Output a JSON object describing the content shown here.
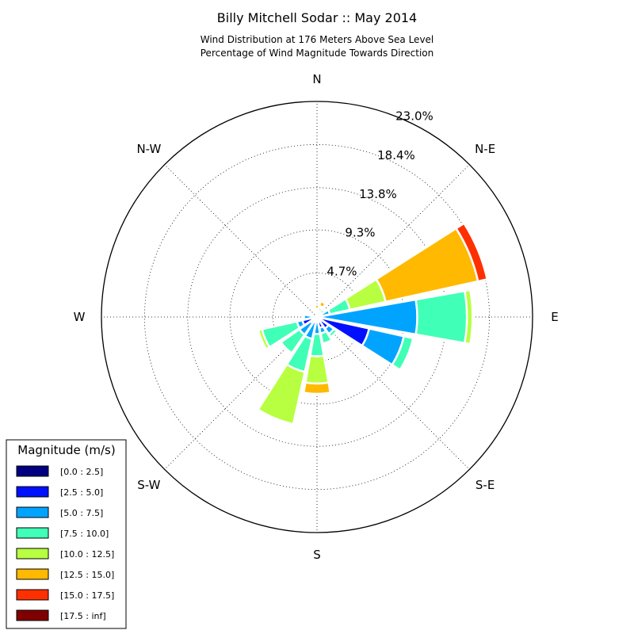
{
  "chart_data": {
    "type": "windrose",
    "title": "Billy Mitchell Sodar :: May 2014",
    "subtitle_lines": [
      "Wind Distribution at 176 Meters Above Sea Level",
      "Percentage of Wind Magnitude Towards Direction"
    ],
    "direction_labels": [
      "N",
      "N-E",
      "E",
      "S-E",
      "S",
      "S-W",
      "W",
      "N-W"
    ],
    "radial_tick_labels": [
      "4.7%",
      "9.3%",
      "13.8%",
      "18.4%",
      "23.0%"
    ],
    "radial_ticks": [
      4.7,
      9.3,
      13.8,
      18.4,
      23.0
    ],
    "rmax": 23.0,
    "grid": true,
    "legend": {
      "title": "Magnitude (m/s)",
      "placement": "lower-left",
      "bins": [
        {
          "label": "[0.0 : 2.5]",
          "color": "#000080"
        },
        {
          "label": "[2.5 : 5.0]",
          "color": "#0010ff"
        },
        {
          "label": "[5.0 : 7.5]",
          "color": "#00a4ff"
        },
        {
          "label": "[7.5 : 10.0]",
          "color": "#40ffb7"
        },
        {
          "label": "[10.0 : 12.5]",
          "color": "#b7ff40"
        },
        {
          "label": "[12.5 : 15.0]",
          "color": "#ffb900"
        },
        {
          "label": "[15.0 : 17.5]",
          "color": "#ff3000"
        },
        {
          "label": "[17.5 : inf]",
          "color": "#800000"
        }
      ]
    },
    "sectors": [
      {
        "direction_deg": 0,
        "cumulative_pct": [
          0.1,
          0.3,
          0.7,
          0.8,
          0.9,
          1.3,
          1.3,
          1.3
        ]
      },
      {
        "direction_deg": 22.5,
        "cumulative_pct": [
          0.1,
          0.3,
          0.7,
          1.0,
          1.2,
          1.7,
          1.7,
          1.7
        ]
      },
      {
        "direction_deg": 45,
        "cumulative_pct": [
          0.1,
          0.3,
          0.6,
          1.0,
          1.1,
          1.2,
          1.2,
          1.2
        ]
      },
      {
        "direction_deg": 67.5,
        "cumulative_pct": [
          0.1,
          0.3,
          1.4,
          3.6,
          7.5,
          17.6,
          18.6,
          18.6
        ]
      },
      {
        "direction_deg": 90,
        "cumulative_pct": [
          0.1,
          0.5,
          10.7,
          16.0,
          16.6,
          16.6,
          16.6,
          16.6
        ]
      },
      {
        "direction_deg": 112.5,
        "cumulative_pct": [
          0.1,
          5.7,
          9.5,
          10.5,
          10.5,
          10.5,
          10.5,
          10.5
        ]
      },
      {
        "direction_deg": 135,
        "cumulative_pct": [
          0.1,
          1.5,
          2.2,
          2.6,
          2.6,
          2.6,
          2.6,
          2.6
        ]
      },
      {
        "direction_deg": 157.5,
        "cumulative_pct": [
          0.1,
          1.2,
          1.8,
          2.9,
          2.9,
          2.9,
          2.9,
          2.9
        ]
      },
      {
        "direction_deg": 180,
        "cumulative_pct": [
          0.1,
          0.5,
          1.8,
          4.2,
          7.1,
          8.2,
          8.2,
          8.2
        ]
      },
      {
        "direction_deg": 202.5,
        "cumulative_pct": [
          0.1,
          0.6,
          2.4,
          6.0,
          11.7,
          11.7,
          11.7,
          11.7
        ]
      },
      {
        "direction_deg": 225,
        "cumulative_pct": [
          0.1,
          0.8,
          2.3,
          4.7,
          4.7,
          4.7,
          4.7,
          4.7
        ]
      },
      {
        "direction_deg": 247.5,
        "cumulative_pct": [
          0.1,
          1.6,
          2.2,
          6.0,
          6.4,
          6.4,
          6.4,
          6.4
        ]
      },
      {
        "direction_deg": 270,
        "cumulative_pct": [
          0.1,
          0.6,
          1.4,
          1.5,
          1.5,
          1.5,
          1.5,
          1.5
        ]
      },
      {
        "direction_deg": 292.5,
        "cumulative_pct": [
          0.1,
          0.1,
          0.1,
          0.1,
          0.1,
          0.1,
          0.1,
          0.1
        ]
      },
      {
        "direction_deg": 315,
        "cumulative_pct": [
          0.1,
          0.1,
          0.1,
          0.1,
          0.1,
          0.1,
          0.1,
          0.1
        ]
      },
      {
        "direction_deg": 337.5,
        "cumulative_pct": [
          0.1,
          0.1,
          0.1,
          0.1,
          0.1,
          0.1,
          0.1,
          0.1
        ]
      }
    ]
  }
}
